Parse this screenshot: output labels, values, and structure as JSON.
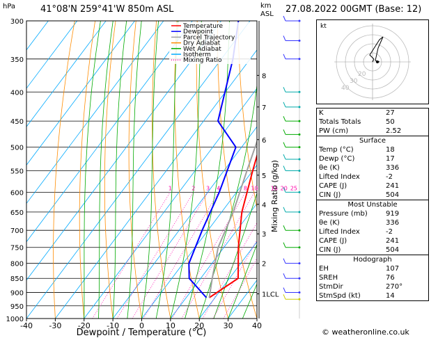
{
  "header": {
    "hpa_label": "hPa",
    "location": "41°08'N  259°41'W  850m  ASL",
    "km_label": "km",
    "asl_label": "ASL",
    "datetime": "27.08.2022  00GMT  (Base: 12)"
  },
  "footer": {
    "copyright": "© weatheronline.co.uk"
  },
  "chart_data": {
    "type": "line",
    "title": "41°08'N  259°41'W  850m  ASL",
    "xlabel": "Dewpoint / Temperature (°C)",
    "ylabel": "hPa",
    "secondary_ylabel": "Mixing Ratio (g/kg)",
    "x_ticks": [
      -40,
      -30,
      -20,
      -10,
      0,
      10,
      20,
      30,
      40
    ],
    "pressure_levels": [
      300,
      350,
      400,
      450,
      500,
      550,
      600,
      650,
      700,
      750,
      800,
      850,
      900,
      950,
      1000
    ],
    "km_ticks": [
      {
        "label": "8",
        "p": 374
      },
      {
        "label": "7",
        "p": 425
      },
      {
        "label": "6",
        "p": 485
      },
      {
        "label": "5",
        "p": 560
      },
      {
        "label": "4",
        "p": 630
      },
      {
        "label": "3",
        "p": 710
      },
      {
        "label": "2",
        "p": 800
      },
      {
        "label": "1LCL",
        "p": 905
      }
    ],
    "mixing_ratio_labels": [
      "1",
      "2",
      "3",
      "4",
      "8",
      "10",
      "16",
      "20",
      "25"
    ],
    "legend": [
      "Temperature",
      "Dewpoint",
      "Parcel Trajectory",
      "Dry Adiabat",
      "Wet Adiabat",
      "Isotherm",
      "Mixing Ratio"
    ],
    "colors": {
      "temperature": "#ff0000",
      "dewpoint": "#0000ff",
      "parcel": "#a0a0a0",
      "dry_adiabat": "#ff8c00",
      "wet_adiabat": "#00aa00",
      "isotherm": "#00aaff",
      "mixing_ratio": "#ff00aa"
    },
    "series": [
      {
        "name": "Temperature",
        "points": [
          [
            18,
            919
          ],
          [
            23,
            850
          ],
          [
            15,
            750
          ],
          [
            7,
            650
          ],
          [
            0,
            550
          ],
          [
            -8,
            450
          ],
          [
            -18,
            350
          ],
          [
            -23,
            300
          ]
        ]
      },
      {
        "name": "Dewpoint",
        "points": [
          [
            17,
            919
          ],
          [
            6,
            850
          ],
          [
            2,
            800
          ],
          [
            -2,
            700
          ],
          [
            -6,
            600
          ],
          [
            -12,
            500
          ],
          [
            -25,
            450
          ],
          [
            -36,
            350
          ],
          [
            -44,
            300
          ]
        ]
      },
      {
        "name": "Parcel Trajectory",
        "points": [
          [
            18,
            919
          ],
          [
            14,
            850
          ],
          [
            8,
            750
          ],
          [
            4,
            650
          ],
          [
            -2,
            550
          ],
          [
            -9,
            450
          ],
          [
            -18,
            350
          ],
          [
            -24,
            300
          ]
        ]
      }
    ]
  },
  "hodograph": {
    "label": "kt",
    "ring_labels": [
      "40",
      "30",
      "20"
    ]
  },
  "indices": {
    "main": [
      {
        "k": "K",
        "v": "27"
      },
      {
        "k": "Totals Totals",
        "v": "50"
      },
      {
        "k": "PW (cm)",
        "v": "2.52"
      }
    ],
    "surface_title": "Surface",
    "surface": [
      {
        "k": "Temp (°C)",
        "v": "18"
      },
      {
        "k": "Dewp (°C)",
        "v": "17"
      },
      {
        "k": "θe (K)",
        "v": "336"
      },
      {
        "k": "Lifted Index",
        "v": "-2"
      },
      {
        "k": "CAPE (J)",
        "v": "241"
      },
      {
        "k": "CIN (J)",
        "v": "504"
      }
    ],
    "unstable_title": "Most Unstable",
    "unstable": [
      {
        "k": "Pressure (mb)",
        "v": "919"
      },
      {
        "k": "θe (K)",
        "v": "336"
      },
      {
        "k": "Lifted Index",
        "v": "-2"
      },
      {
        "k": "CAPE (J)",
        "v": "241"
      },
      {
        "k": "CIN (J)",
        "v": "504"
      }
    ],
    "hodo_title": "Hodograph",
    "hodo": [
      {
        "k": "EH",
        "v": "107"
      },
      {
        "k": "SREH",
        "v": "76"
      },
      {
        "k": "StmDir",
        "v": "270°"
      },
      {
        "k": "StmSpd (kt)",
        "v": "14"
      }
    ]
  }
}
